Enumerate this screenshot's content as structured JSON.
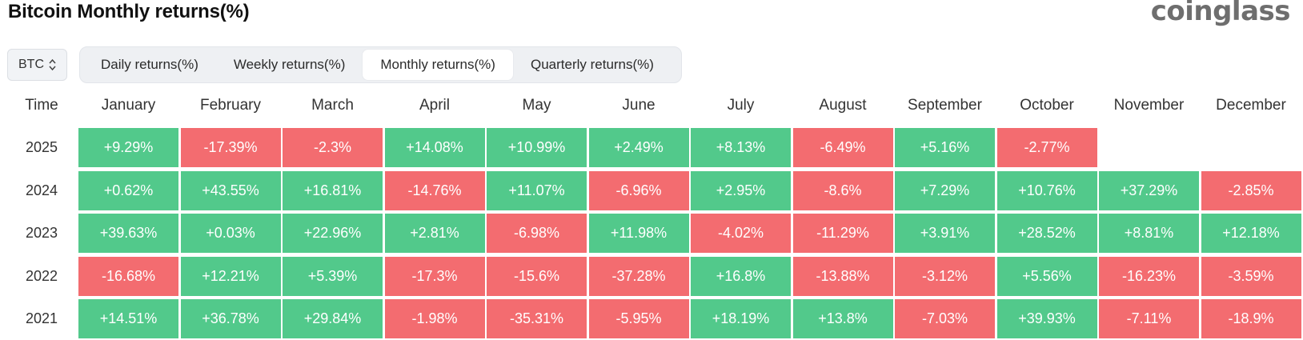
{
  "title": "Bitcoin Monthly returns(%)",
  "brand": "coinglass",
  "asset_select": {
    "value": "BTC"
  },
  "tabs": [
    {
      "label": "Daily returns(%)",
      "active": false
    },
    {
      "label": "Weekly returns(%)",
      "active": false
    },
    {
      "label": "Monthly returns(%)",
      "active": true
    },
    {
      "label": "Quarterly returns(%)",
      "active": false
    }
  ],
  "colors": {
    "positive": "#52c98b",
    "negative": "#f36c70"
  },
  "table": {
    "time_header": "Time",
    "months": [
      "January",
      "February",
      "March",
      "April",
      "May",
      "June",
      "July",
      "August",
      "September",
      "October",
      "November",
      "December"
    ],
    "rows": [
      {
        "year": "2025",
        "values": [
          "+9.29%",
          "-17.39%",
          "-2.3%",
          "+14.08%",
          "+10.99%",
          "+2.49%",
          "+8.13%",
          "-6.49%",
          "+5.16%",
          "-2.77%",
          "",
          ""
        ]
      },
      {
        "year": "2024",
        "values": [
          "+0.62%",
          "+43.55%",
          "+16.81%",
          "-14.76%",
          "+11.07%",
          "-6.96%",
          "+2.95%",
          "-8.6%",
          "+7.29%",
          "+10.76%",
          "+37.29%",
          "-2.85%"
        ]
      },
      {
        "year": "2023",
        "values": [
          "+39.63%",
          "+0.03%",
          "+22.96%",
          "+2.81%",
          "-6.98%",
          "+11.98%",
          "-4.02%",
          "-11.29%",
          "+3.91%",
          "+28.52%",
          "+8.81%",
          "+12.18%"
        ]
      },
      {
        "year": "2022",
        "values": [
          "-16.68%",
          "+12.21%",
          "+5.39%",
          "-17.3%",
          "-15.6%",
          "-37.28%",
          "+16.8%",
          "-13.88%",
          "-3.12%",
          "+5.56%",
          "-16.23%",
          "-3.59%"
        ]
      },
      {
        "year": "2021",
        "values": [
          "+14.51%",
          "+36.78%",
          "+29.84%",
          "-1.98%",
          "-35.31%",
          "-5.95%",
          "+18.19%",
          "+13.8%",
          "-7.03%",
          "+39.93%",
          "-7.11%",
          "-18.9%"
        ]
      }
    ]
  }
}
